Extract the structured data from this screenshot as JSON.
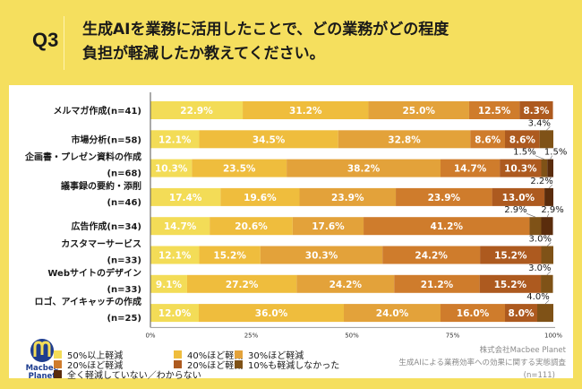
{
  "header": {
    "q_label": "Q3",
    "title_line1": "生成AIを業務に活用したことで、どの業務がどの程度",
    "title_line2": "負担が軽減したか教えてください。"
  },
  "chart_data": {
    "type": "bar",
    "orientation": "horizontal-stacked-100",
    "title": "生成AIを業務に活用したことで、どの業務がどの程度負担が軽減したか教えてください。",
    "xlabel": "",
    "ylabel": "",
    "xlim": [
      0,
      100
    ],
    "x_ticks": [
      "0%",
      "25%",
      "50%",
      "75%",
      "100%"
    ],
    "categories": [
      [
        "メルマガ作成(n=41)"
      ],
      [
        "市場分析(n=58)"
      ],
      [
        "企画書・プレゼン資料の作成",
        "(n=68)"
      ],
      [
        "議事録の要約・添削",
        "(n=46)"
      ],
      [
        "広告作成(n=34)"
      ],
      [
        "カスタマーサービス",
        "(n=33)"
      ],
      [
        "Webサイトのデザイン",
        "(n=33)"
      ],
      [
        "ロゴ、アイキャッチの作成",
        "(n=25)"
      ]
    ],
    "series": [
      {
        "name": "50%以上軽減",
        "color": "#f3dc57",
        "values": [
          22.9,
          12.1,
          10.3,
          17.4,
          14.7,
          12.1,
          9.1,
          12.0
        ]
      },
      {
        "name": "40%ほど軽減",
        "color": "#efbd3d",
        "values": [
          31.2,
          34.5,
          23.5,
          19.6,
          20.6,
          15.2,
          27.2,
          36.0
        ]
      },
      {
        "name": "30%ほど軽減",
        "color": "#e3a23a",
        "values": [
          25.0,
          32.8,
          38.2,
          23.9,
          17.6,
          30.3,
          24.2,
          24.0
        ]
      },
      {
        "name": "20%ほど軽減",
        "color": "#cf7c2c",
        "values": [
          12.5,
          8.6,
          14.7,
          23.9,
          41.2,
          24.2,
          21.2,
          16.0
        ]
      },
      {
        "name": "20%ほど軽減",
        "color": "#ad5a1f",
        "values": [
          8.3,
          8.6,
          10.3,
          13.0,
          0,
          15.2,
          15.2,
          8.0
        ]
      },
      {
        "name": "10%も軽減しなかった",
        "color": "#7f5217",
        "values": [
          0,
          3.4,
          1.5,
          0,
          2.9,
          3.0,
          3.0,
          4.0
        ]
      },
      {
        "name": "全く軽減していない／わからない",
        "color": "#5a2c0c",
        "values": [
          0,
          0,
          1.5,
          2.2,
          2.9,
          0,
          0,
          0
        ]
      }
    ],
    "legend_position": "bottom",
    "grid": false
  },
  "legend": {
    "items": [
      {
        "label": "50%以上軽減",
        "color": "#f3dc57"
      },
      {
        "label": "40%ほど軽減",
        "color": "#efbd3d"
      },
      {
        "label": "30%ほど軽減",
        "color": "#e3a23a"
      },
      {
        "label": "20%ほど軽減",
        "color": "#cf7c2c"
      },
      {
        "label": "20%ほど軽減",
        "color": "#ad5a1f"
      },
      {
        "label": "10%も軽減しなかった",
        "color": "#7f5217"
      },
      {
        "label": "全く軽減していない／わからない",
        "color": "#5a2c0c"
      }
    ]
  },
  "credit": {
    "company": "株式会社Macbee Planet",
    "survey": "生成AIによる業務効率への効果に関する実態調査",
    "n": "(n=111)"
  },
  "logo": {
    "line1": "Macbee",
    "line2": "Planet",
    "color": "#1e3d8f"
  }
}
